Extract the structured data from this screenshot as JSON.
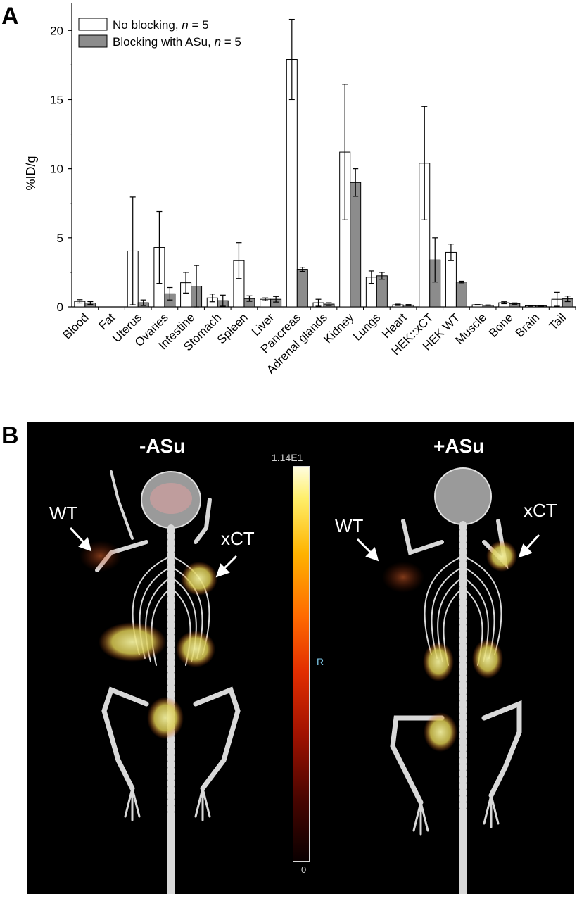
{
  "panel_a_letter": "A",
  "panel_b_letter": "B",
  "chart_data": {
    "type": "bar",
    "ylabel": "%ID/g",
    "xlabel": "",
    "ylim": [
      0,
      22
    ],
    "yticks": [
      0,
      5,
      10,
      15,
      20
    ],
    "legend_position": "top-left",
    "categories": [
      "Blood",
      "Fat",
      "Uterus",
      "Ovaries",
      "Intestine",
      "Stomach",
      "Spleen",
      "Liver",
      "Pancreas",
      "Adrenal glands",
      "Kidney",
      "Lungs",
      "Heart",
      "HEK::xCT",
      "HEK WT",
      "Muscle",
      "Bone",
      "Brain",
      "Tail"
    ],
    "series": [
      {
        "legend_prefix": "No blocking, ",
        "legend_n": "n",
        "legend_suffix": " = 5",
        "color": "#ffffff",
        "values": [
          0.4,
          0.0,
          4.05,
          4.3,
          1.75,
          0.65,
          3.35,
          0.55,
          17.9,
          0.3,
          11.2,
          2.15,
          0.15,
          10.4,
          3.95,
          0.15,
          0.3,
          0.08,
          0.55
        ],
        "errors": [
          0.12,
          0.0,
          3.9,
          2.6,
          0.75,
          0.28,
          1.3,
          0.1,
          2.9,
          0.25,
          4.9,
          0.45,
          0.05,
          4.1,
          0.6,
          0.02,
          0.07,
          0.02,
          0.5
        ]
      },
      {
        "legend_prefix": "Blocking with ASu, ",
        "legend_n": "n",
        "legend_suffix": " = 5",
        "color": "#8c8c8c",
        "values": [
          0.28,
          0.0,
          0.3,
          0.95,
          1.5,
          0.45,
          0.6,
          0.55,
          2.72,
          0.2,
          9.0,
          2.25,
          0.13,
          3.4,
          1.8,
          0.12,
          0.24,
          0.07,
          0.58
        ],
        "errors": [
          0.1,
          0.0,
          0.2,
          0.45,
          1.5,
          0.4,
          0.2,
          0.2,
          0.15,
          0.1,
          1.0,
          0.25,
          0.04,
          1.6,
          0.06,
          0.02,
          0.05,
          0.02,
          0.2
        ]
      }
    ]
  },
  "imaging": {
    "left_title": "-ASu",
    "right_title": "+ASu",
    "scale_max": "1.14E1",
    "scale_min": "0",
    "orientation_marker": "R",
    "left_wt_label": "WT",
    "left_xct_label": "xCT",
    "right_wt_label": "WT",
    "right_xct_label": "xCT"
  }
}
